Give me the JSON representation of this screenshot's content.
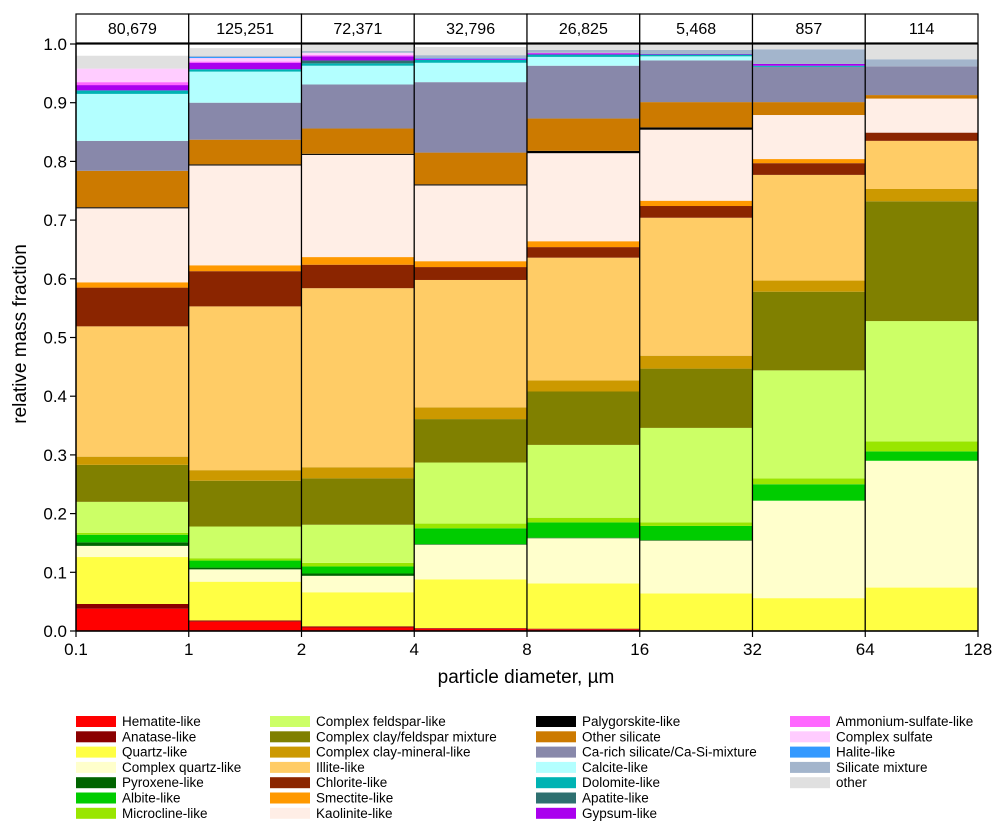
{
  "chart_data": {
    "type": "bar",
    "stacked": true,
    "xlabel": "particle diameter, µm",
    "ylabel": "relative mass fraction",
    "ylim": [
      0,
      1.0
    ],
    "y_ticks": [
      "0.0",
      "0.1",
      "0.2",
      "0.3",
      "0.4",
      "0.5",
      "0.6",
      "0.7",
      "0.8",
      "0.9",
      "1.0"
    ],
    "bin_edges": [
      "0.1",
      "1",
      "2",
      "4",
      "8",
      "16",
      "32",
      "64",
      "128"
    ],
    "bin_counts": [
      "80,679",
      "125,251",
      "72,371",
      "32,796",
      "26,825",
      "5,468",
      "857",
      "114"
    ],
    "legend_position": "bottom",
    "series": [
      {
        "name": "Hematite-like",
        "color": "#ff0000",
        "values": [
          0.038,
          0.016,
          0.006,
          0.004,
          0.003,
          0.001,
          0.0,
          0.0
        ]
      },
      {
        "name": "Anatase-like",
        "color": "#8b0000",
        "values": [
          0.008,
          0.002,
          0.002,
          0.001,
          0.001,
          0.0,
          0.0,
          0.0
        ]
      },
      {
        "name": "Quartz-like",
        "color": "#ffff44",
        "values": [
          0.08,
          0.066,
          0.058,
          0.083,
          0.077,
          0.063,
          0.056,
          0.074
        ]
      },
      {
        "name": "Complex quartz-like",
        "color": "#ffffcc",
        "values": [
          0.019,
          0.021,
          0.028,
          0.059,
          0.077,
          0.09,
          0.166,
          0.216
        ]
      },
      {
        "name": "Pyroxene-like",
        "color": "#006400",
        "values": [
          0.006,
          0.003,
          0.004,
          0.001,
          0.001,
          0.001,
          0.0,
          0.0
        ]
      },
      {
        "name": "Albite-like",
        "color": "#00cc00",
        "values": [
          0.013,
          0.012,
          0.012,
          0.027,
          0.026,
          0.024,
          0.028,
          0.016
        ]
      },
      {
        "name": "Microcline-like",
        "color": "#99e600",
        "values": [
          0.003,
          0.004,
          0.006,
          0.008,
          0.008,
          0.006,
          0.01,
          0.017
        ]
      },
      {
        "name": "Complex feldspar-like",
        "color": "#ccff66",
        "values": [
          0.053,
          0.054,
          0.065,
          0.104,
          0.124,
          0.161,
          0.184,
          0.205
        ]
      },
      {
        "name": "Complex clay/feldspar mixture",
        "color": "#808000",
        "values": [
          0.063,
          0.078,
          0.079,
          0.074,
          0.091,
          0.101,
          0.134,
          0.204
        ]
      },
      {
        "name": "Complex clay-mineral-like",
        "color": "#cc9900",
        "values": [
          0.014,
          0.018,
          0.019,
          0.02,
          0.019,
          0.022,
          0.019,
          0.021
        ]
      },
      {
        "name": "Illite-like",
        "color": "#ffcc66",
        "values": [
          0.222,
          0.279,
          0.305,
          0.217,
          0.209,
          0.235,
          0.18,
          0.082
        ]
      },
      {
        "name": "Chlorite-like",
        "color": "#8b2500",
        "values": [
          0.066,
          0.06,
          0.04,
          0.022,
          0.018,
          0.02,
          0.02,
          0.014
        ]
      },
      {
        "name": "Smectite-like",
        "color": "#ff9900",
        "values": [
          0.009,
          0.01,
          0.013,
          0.01,
          0.01,
          0.009,
          0.007,
          0.0
        ]
      },
      {
        "name": "Kaolinite-like",
        "color": "#ffeee6",
        "values": [
          0.126,
          0.17,
          0.174,
          0.129,
          0.15,
          0.121,
          0.075,
          0.058
        ]
      },
      {
        "name": "Palygorskite-like",
        "color": "#000000",
        "values": [
          0.002,
          0.002,
          0.002,
          0.002,
          0.004,
          0.004,
          0.0,
          0.0
        ]
      },
      {
        "name": "Other silicate",
        "color": "#cc7a00",
        "values": [
          0.062,
          0.042,
          0.043,
          0.054,
          0.055,
          0.043,
          0.022,
          0.006
        ]
      },
      {
        "name": "Ca-rich silicate/Ca-Si-mixture",
        "color": "#8888aa",
        "values": [
          0.051,
          0.063,
          0.075,
          0.12,
          0.09,
          0.071,
          0.06,
          0.049
        ]
      },
      {
        "name": "Calcite-like",
        "color": "#b3ffff",
        "values": [
          0.08,
          0.053,
          0.032,
          0.033,
          0.015,
          0.007,
          0.0,
          0.0
        ]
      },
      {
        "name": "Dolomite-like",
        "color": "#00b3b3",
        "values": [
          0.006,
          0.004,
          0.004,
          0.005,
          0.004,
          0.003,
          0.002,
          0.0
        ]
      },
      {
        "name": "Apatite-like",
        "color": "#2e7070",
        "values": [
          0.0,
          0.0,
          0.005,
          0.0,
          0.0,
          0.0,
          0.0,
          0.0
        ]
      },
      {
        "name": "Gypsum-like",
        "color": "#aa00ee",
        "values": [
          0.009,
          0.011,
          0.007,
          0.002,
          0.002,
          0.001,
          0.003,
          0.0
        ]
      },
      {
        "name": "Ammonium-sulfate-like",
        "color": "#ff66ff",
        "values": [
          0.005,
          0.002,
          0.002,
          0.0,
          0.001,
          0.0,
          0.0,
          0.0
        ]
      },
      {
        "name": "Complex sulfate",
        "color": "#ffccff",
        "values": [
          0.023,
          0.006,
          0.004,
          0.0,
          0.0,
          0.0,
          0.0,
          0.0
        ]
      },
      {
        "name": "Halite-like",
        "color": "#3399ff",
        "values": [
          0.0,
          0.002,
          0.0,
          0.001,
          0.0,
          0.0,
          0.0,
          0.0
        ]
      },
      {
        "name": "Silicate mixture",
        "color": "#a3b5cc",
        "values": [
          0.0,
          0.002,
          0.003,
          0.005,
          0.005,
          0.007,
          0.025,
          0.012
        ]
      },
      {
        "name": "other",
        "color": "#e0e0e0",
        "values": [
          0.022,
          0.013,
          0.012,
          0.014,
          0.01,
          0.013,
          0.013,
          0.024
        ]
      }
    ]
  }
}
